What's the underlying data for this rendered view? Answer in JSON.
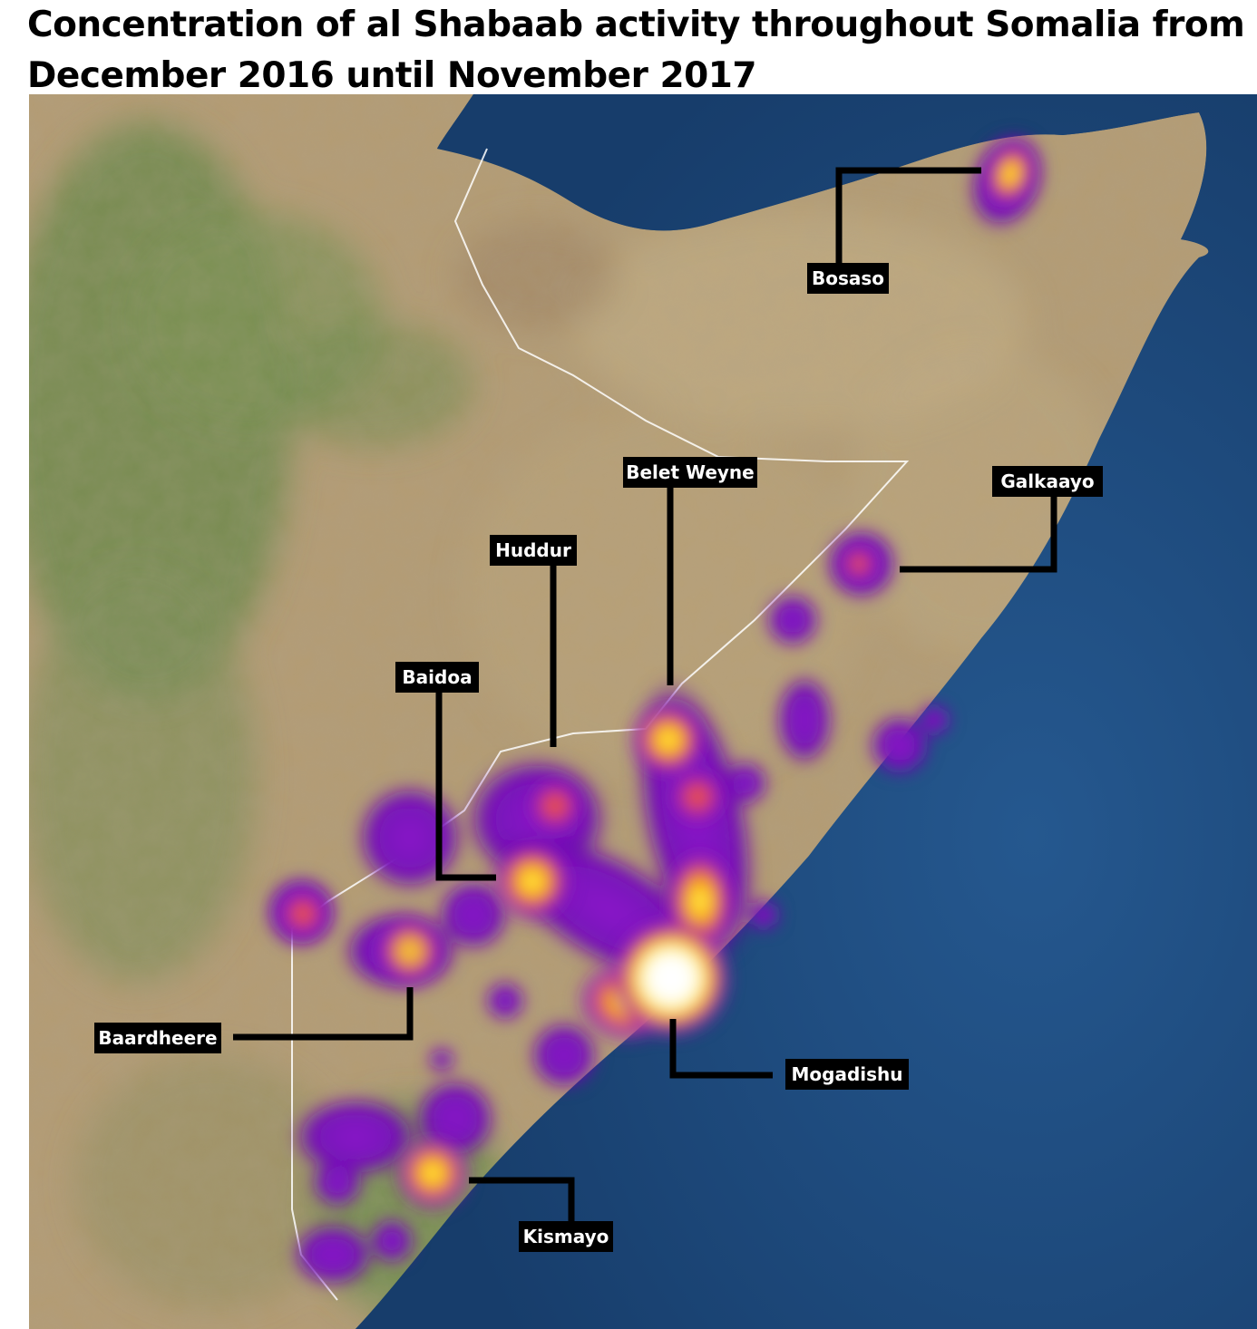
{
  "title": {
    "line1": "Concentration of al Shabaab activity throughout Somalia from",
    "line2": "December 2016 until November 2017"
  },
  "labels": {
    "bosaso": "Bosaso",
    "galkaayo": "Galkaayo",
    "belet_weyne": "Belet Weyne",
    "huddur": "Huddur",
    "baidoa": "Baidoa",
    "baardheere": "Baardheere",
    "mogadishu": "Mogadishu",
    "kismayo": "Kismayo"
  },
  "colors": {
    "ocean": "#1e4a7e",
    "land": "#b9a27a",
    "green_land": "#6f8a4e",
    "heat_low": "#6a0fb0",
    "heat_mid": "#e0401e",
    "heat_high": "#ffe800",
    "heat_peak": "#ffffff",
    "border": "#ffffff",
    "label_bg": "#000000",
    "label_text": "#ffffff"
  }
}
